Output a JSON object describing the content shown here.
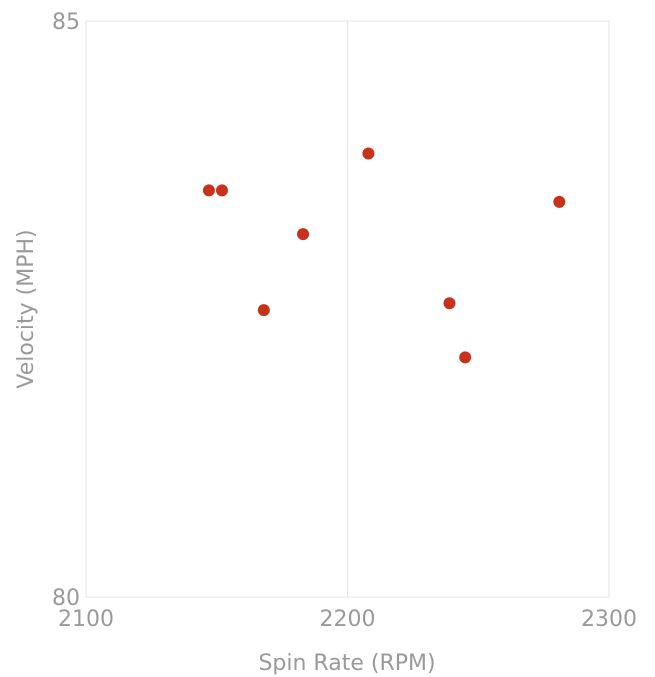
{
  "chart_data": {
    "type": "scatter",
    "title": "",
    "xlabel": "Spin Rate (RPM)",
    "ylabel": "Velocity (MPH)",
    "xlim": [
      2100,
      2300
    ],
    "ylim": [
      80,
      85
    ],
    "x_ticks": [
      2100,
      2200,
      2300
    ],
    "y_ticks": [
      80,
      85
    ],
    "x_tick_labels": [
      "2100",
      "2200",
      "2300"
    ],
    "y_tick_labels": [
      "80",
      "85"
    ],
    "grid": "vertical gridline at 2200",
    "legend": "none",
    "series": [
      {
        "color": "#c7321a",
        "points": [
          {
            "x": 2147,
            "y": 83.53
          },
          {
            "x": 2152,
            "y": 83.53
          },
          {
            "x": 2168,
            "y": 82.49
          },
          {
            "x": 2183,
            "y": 83.15
          },
          {
            "x": 2208,
            "y": 83.85
          },
          {
            "x": 2239,
            "y": 82.55
          },
          {
            "x": 2245,
            "y": 82.08
          },
          {
            "x": 2281,
            "y": 83.43
          }
        ]
      }
    ]
  }
}
